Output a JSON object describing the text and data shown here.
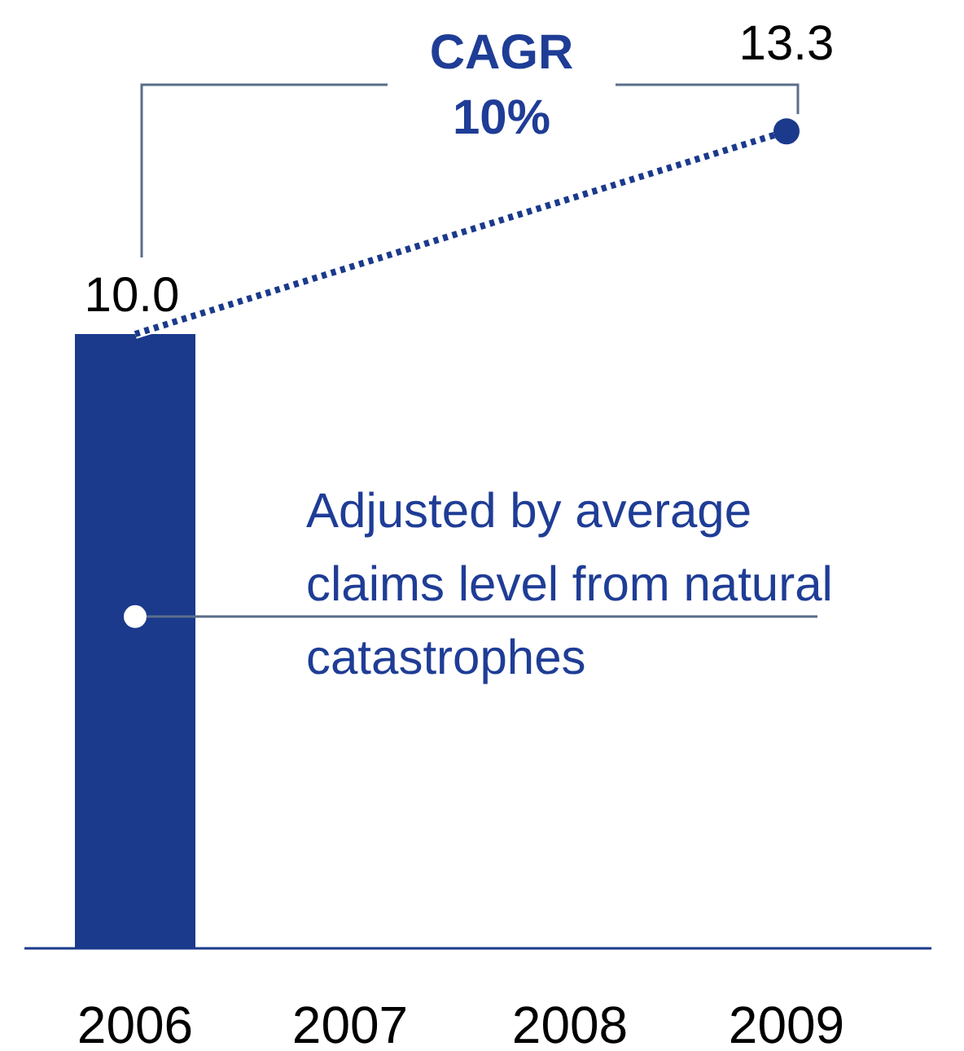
{
  "chart_data": {
    "type": "bar",
    "categories": [
      "2006",
      "2007",
      "2008",
      "2009"
    ],
    "tick_labels": "x",
    "series": [
      {
        "color": "#1b3a8c",
        "values": [
          10.0,
          null,
          null,
          null
        ],
        "value_labels": [
          "10.0",
          null,
          null,
          null
        ]
      },
      {
        "type": "line",
        "color": "#1b3a8c",
        "values": [
          10.0,
          null,
          null,
          13.3
        ],
        "line_style": "dotted",
        "marker": "none"
      },
      {
        "type": "scatter",
        "color": "#1b3a8c",
        "values": [
          null,
          null,
          null,
          13.3
        ],
        "marker": "circle",
        "value_labels": [
          null,
          null,
          null,
          "13.3"
        ]
      }
    ],
    "annotations": [
      "CAGR\n10%",
      {
        "text": "Adjusted by average\nclaims level from natural\ncatastrophes",
        "x": "2006",
        "y": 5.4
      }
    ]
  }
}
